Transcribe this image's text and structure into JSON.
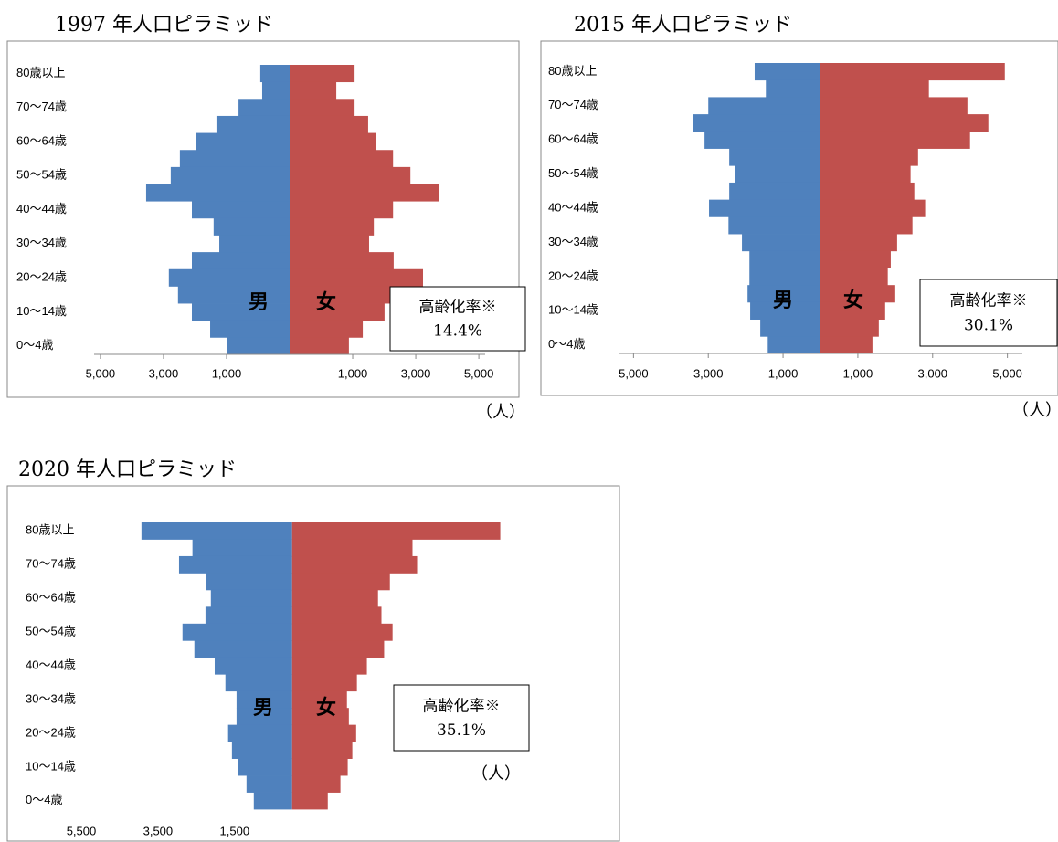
{
  "chart_data": [
    {
      "type": "pyramid",
      "title": "1997 年人口ピラミッド",
      "categories": [
        "80歳以上",
        null,
        "70～74歳",
        null,
        "60～64歳",
        null,
        "50～54歳",
        null,
        "40～44歳",
        null,
        "30～34歳",
        null,
        "20～24歳",
        null,
        "10～14歳",
        null,
        "0～4歳"
      ],
      "series": [
        {
          "name": "男",
          "color": "#4f81bd",
          "values": [
            930,
            870,
            1620,
            2320,
            2960,
            3480,
            3770,
            4550,
            3100,
            2410,
            2230,
            3100,
            3830,
            3540,
            3100,
            2520,
            1970
          ]
        },
        {
          "name": "女",
          "color": "#c0504d",
          "values": [
            2060,
            1480,
            2060,
            2490,
            2750,
            3280,
            3830,
            4750,
            3280,
            2670,
            2520,
            3300,
            4230,
            3570,
            3010,
            2320,
            1880
          ]
        }
      ],
      "xlim": [
        -6200,
        6200
      ],
      "xticks": [
        {
          "value": -6000,
          "label": "5,000"
        },
        {
          "value": -4000,
          "label": "3,000"
        },
        {
          "value": -2000,
          "label": "1,000"
        },
        {
          "value": 2000,
          "label": "1,000"
        },
        {
          "value": 4000,
          "label": "3,000"
        },
        {
          "value": 6000,
          "label": "5,000"
        }
      ],
      "annotation_title": "高齢化率※",
      "annotation_value": "14.4%",
      "unit": "（人）"
    },
    {
      "type": "pyramid",
      "title": "2015 年人口ピラミッド",
      "categories": [
        "80歳以上",
        null,
        "70～74歳",
        null,
        "60～64歳",
        null,
        "50～54歳",
        null,
        "40～44歳",
        null,
        "30～34歳",
        null,
        "20～24歳",
        null,
        "10～14歳",
        null,
        "0～4歳"
      ],
      "series": [
        {
          "name": "男",
          "color": "#4f81bd",
          "values": [
            1760,
            1460,
            3000,
            3410,
            3100,
            2440,
            2290,
            2440,
            2980,
            2460,
            2100,
            1900,
            1900,
            1950,
            1880,
            1610,
            1410
          ]
        },
        {
          "name": "女",
          "color": "#c0504d",
          "values": [
            4930,
            2900,
            3930,
            4490,
            4000,
            2610,
            2410,
            2510,
            2800,
            2460,
            2050,
            1880,
            1800,
            2000,
            1730,
            1560,
            1390
          ]
        }
      ],
      "xlim": [
        -5400,
        5400
      ],
      "xticks": [
        {
          "value": -5000,
          "label": "5,000"
        },
        {
          "value": -3000,
          "label": "3,000"
        },
        {
          "value": -1000,
          "label": "1,000"
        },
        {
          "value": 1000,
          "label": "1,000"
        },
        {
          "value": 3000,
          "label": "3,000"
        },
        {
          "value": 5000,
          "label": "5,000"
        }
      ],
      "annotation_title": "高齢化率※",
      "annotation_value": "30.1%",
      "unit": "（人）"
    },
    {
      "type": "pyramid",
      "title": "2020 年人口ピラミッド",
      "categories": [
        "80歳以上",
        null,
        "70～74歳",
        null,
        "60～64歳",
        null,
        "50～54歳",
        null,
        "40～44歳",
        null,
        "30～34歳",
        null,
        "20～24歳",
        null,
        "10～14歳",
        null,
        "0～4歳"
      ],
      "series": [
        {
          "name": "男",
          "color": "#4f81bd",
          "values": [
            3930,
            2600,
            2950,
            2240,
            2120,
            2260,
            2860,
            2550,
            2020,
            1740,
            1450,
            1450,
            1670,
            1570,
            1400,
            1190,
            1000
          ]
        },
        {
          "name": "女",
          "color": "#c0504d",
          "values": [
            5430,
            3140,
            3260,
            2550,
            2240,
            2330,
            2620,
            2400,
            1950,
            1690,
            1430,
            1480,
            1670,
            1570,
            1450,
            1260,
            930
          ]
        }
      ],
      "xlim": [
        -6200,
        8300
      ],
      "xticks": [
        {
          "value": -5500,
          "label": "5,500"
        },
        {
          "value": -3500,
          "label": "3,500"
        },
        {
          "value": -1500,
          "label": "1,500"
        }
      ],
      "annotation_title": "高齢化率※",
      "annotation_value": "35.1%",
      "unit": "（人）"
    }
  ]
}
